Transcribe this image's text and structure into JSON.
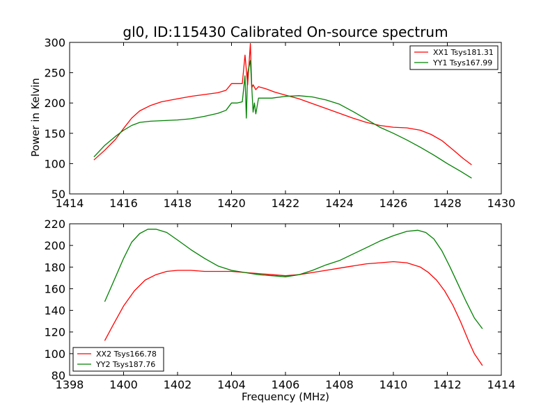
{
  "chart_data": [
    {
      "type": "line",
      "title": "gl0, ID:115430 Calibrated On-source spectrum",
      "xlabel": "",
      "ylabel": "Power in Kelvin",
      "xlim": [
        1414,
        1430
      ],
      "ylim": [
        50,
        300
      ],
      "xticks": [
        1414,
        1416,
        1418,
        1420,
        1422,
        1424,
        1426,
        1428,
        1430
      ],
      "yticks": [
        50,
        100,
        150,
        200,
        250,
        300
      ],
      "grid": false,
      "legend_position": "top-right",
      "series": [
        {
          "name": "XX1 Tsys181.31",
          "color": "#ff0000",
          "x": [
            1414.9,
            1415.3,
            1415.7,
            1416.0,
            1416.3,
            1416.6,
            1417.0,
            1417.4,
            1418.0,
            1418.5,
            1419.0,
            1419.5,
            1419.8,
            1420.0,
            1420.2,
            1420.4,
            1420.5,
            1420.6,
            1420.7,
            1420.75,
            1420.8,
            1420.9,
            1421.0,
            1421.3,
            1421.6,
            1422.0,
            1422.5,
            1423.0,
            1423.5,
            1424.0,
            1424.5,
            1425.0,
            1425.5,
            1426.0,
            1426.5,
            1427.0,
            1427.4,
            1427.8,
            1428.2,
            1428.6,
            1428.9
          ],
          "values": [
            106,
            122,
            140,
            158,
            175,
            187,
            196,
            202,
            207,
            211,
            214,
            217,
            221,
            232,
            232,
            232,
            279,
            230,
            298,
            225,
            230,
            222,
            227,
            223,
            218,
            213,
            207,
            199,
            191,
            183,
            175,
            168,
            163,
            160,
            159,
            155,
            148,
            138,
            123,
            108,
            98
          ]
        },
        {
          "name": "YY1 Tsys167.99",
          "color": "#008000",
          "x": [
            1414.9,
            1415.3,
            1415.7,
            1416.0,
            1416.3,
            1416.6,
            1417.0,
            1417.5,
            1418.0,
            1418.5,
            1419.0,
            1419.5,
            1419.8,
            1420.0,
            1420.2,
            1420.4,
            1420.5,
            1420.55,
            1420.6,
            1420.7,
            1420.8,
            1420.85,
            1420.9,
            1421.0,
            1421.5,
            1422.0,
            1422.5,
            1423.0,
            1423.5,
            1424.0,
            1424.5,
            1425.0,
            1425.5,
            1426.0,
            1426.5,
            1427.0,
            1427.5,
            1428.0,
            1428.5,
            1428.9
          ],
          "values": [
            111,
            130,
            145,
            155,
            163,
            168,
            170,
            171,
            172,
            174,
            178,
            183,
            188,
            200,
            200,
            202,
            245,
            175,
            250,
            270,
            185,
            200,
            182,
            208,
            208,
            211,
            212,
            210,
            205,
            198,
            186,
            173,
            160,
            150,
            139,
            127,
            114,
            100,
            87,
            76
          ]
        }
      ]
    },
    {
      "type": "line",
      "title": "",
      "xlabel": "Frequency (MHz)",
      "ylabel": "",
      "xlim": [
        1398,
        1414
      ],
      "ylim": [
        80,
        220
      ],
      "xticks": [
        1398,
        1400,
        1402,
        1404,
        1406,
        1408,
        1410,
        1412,
        1414
      ],
      "yticks": [
        80,
        100,
        120,
        140,
        160,
        180,
        200,
        220
      ],
      "grid": false,
      "legend_position": "bottom-left",
      "series": [
        {
          "name": "XX2 Tsys166.78",
          "color": "#ff0000",
          "x": [
            1399.3,
            1399.6,
            1400.0,
            1400.4,
            1400.8,
            1401.2,
            1401.6,
            1402.0,
            1402.5,
            1403.0,
            1403.5,
            1404.0,
            1404.5,
            1405.0,
            1405.5,
            1406.0,
            1406.5,
            1407.0,
            1407.5,
            1408.0,
            1408.5,
            1409.0,
            1409.5,
            1410.0,
            1410.5,
            1411.0,
            1411.3,
            1411.6,
            1411.9,
            1412.2,
            1412.5,
            1412.8,
            1413.0,
            1413.3
          ],
          "values": [
            112,
            126,
            144,
            158,
            168,
            173,
            176,
            177,
            177,
            176,
            176,
            176,
            175,
            174,
            173,
            172,
            173,
            175,
            177,
            179,
            181,
            183,
            184,
            185,
            184,
            180,
            175,
            168,
            158,
            145,
            129,
            111,
            100,
            89
          ]
        },
        {
          "name": "YY2 Tsys187.76",
          "color": "#008000",
          "x": [
            1399.3,
            1399.6,
            1400.0,
            1400.3,
            1400.6,
            1400.9,
            1401.2,
            1401.6,
            1402.0,
            1402.5,
            1403.0,
            1403.5,
            1404.0,
            1404.5,
            1405.0,
            1405.5,
            1406.0,
            1406.5,
            1407.0,
            1407.5,
            1408.0,
            1408.5,
            1409.0,
            1409.5,
            1410.0,
            1410.5,
            1410.9,
            1411.2,
            1411.5,
            1411.8,
            1412.1,
            1412.4,
            1412.7,
            1413.0,
            1413.3
          ],
          "values": [
            148,
            165,
            188,
            203,
            211,
            215,
            215,
            212,
            205,
            196,
            188,
            181,
            177,
            175,
            173,
            172,
            171,
            173,
            177,
            182,
            186,
            192,
            198,
            204,
            209,
            213,
            214,
            212,
            206,
            195,
            180,
            164,
            148,
            133,
            123
          ]
        }
      ]
    }
  ]
}
